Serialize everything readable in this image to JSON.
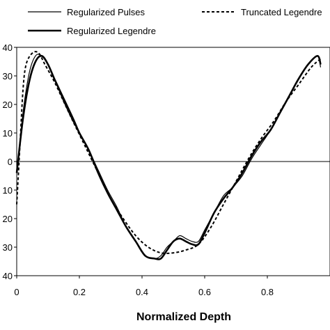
{
  "chart_data": {
    "type": "line",
    "xlabel": "Normalized Depth",
    "ylabel": "",
    "xlim": [
      0,
      1
    ],
    "ylim": [
      -40,
      40
    ],
    "x_ticks": [
      0,
      0.2,
      0.4,
      0.6,
      0.8
    ],
    "x_tick_labels": [
      "0",
      "0.2",
      "0.4",
      "0.6",
      "0.8"
    ],
    "y_ticks": [
      40,
      30,
      20,
      10,
      0,
      -10,
      -20,
      -30,
      -40
    ],
    "y_tick_labels": [
      "40",
      "30",
      "20",
      "10",
      "0",
      "10",
      "20",
      "30",
      "40"
    ],
    "grid": false,
    "zero_line": true,
    "legend_position": "top",
    "series": [
      {
        "name": "Regularized Pulses",
        "style": "thin",
        "x": [
          0,
          0.02,
          0.04,
          0.06,
          0.08,
          0.1,
          0.12,
          0.15,
          0.18,
          0.2,
          0.23,
          0.26,
          0.29,
          0.32,
          0.35,
          0.38,
          0.41,
          0.44,
          0.46,
          0.48,
          0.5,
          0.52,
          0.54,
          0.56,
          0.58,
          0.6,
          0.63,
          0.66,
          0.69,
          0.72,
          0.75,
          0.78,
          0.81,
          0.84,
          0.87,
          0.9,
          0.93,
          0.96,
          0.97
        ],
        "y": [
          -4,
          17,
          31,
          37,
          37,
          34,
          29,
          21,
          14,
          10,
          4,
          -3,
          -10,
          -16,
          -23,
          -28,
          -33,
          -34,
          -33,
          -30,
          -28,
          -26,
          -27,
          -28,
          -28,
          -24,
          -18,
          -12,
          -9,
          -5,
          1,
          6,
          11,
          17,
          23,
          29,
          34,
          37,
          33
        ]
      },
      {
        "name": "Regularized Legendre",
        "style": "thick",
        "x": [
          0,
          0.02,
          0.04,
          0.06,
          0.08,
          0.1,
          0.12,
          0.15,
          0.18,
          0.2,
          0.23,
          0.26,
          0.29,
          0.32,
          0.35,
          0.38,
          0.41,
          0.44,
          0.46,
          0.48,
          0.5,
          0.52,
          0.54,
          0.56,
          0.58,
          0.6,
          0.63,
          0.66,
          0.69,
          0.72,
          0.75,
          0.78,
          0.81,
          0.84,
          0.87,
          0.9,
          0.93,
          0.96,
          0.97
        ],
        "y": [
          -4,
          15,
          28,
          35,
          37,
          34,
          29,
          22,
          15,
          10,
          4,
          -4,
          -11,
          -17,
          -23,
          -28,
          -33,
          -34,
          -34,
          -31,
          -28,
          -27,
          -28,
          -29,
          -29,
          -25,
          -18,
          -13,
          -9,
          -4,
          2,
          7,
          11,
          17,
          23,
          29,
          34,
          37,
          34
        ]
      },
      {
        "name": "Truncated Legendre",
        "style": "dashed",
        "x": [
          0,
          0.01,
          0.02,
          0.03,
          0.05,
          0.07,
          0.09,
          0.12,
          0.15,
          0.18,
          0.22,
          0.26,
          0.3,
          0.34,
          0.38,
          0.42,
          0.46,
          0.5,
          0.54,
          0.58,
          0.62,
          0.66,
          0.7,
          0.74,
          0.78,
          0.82,
          0.86,
          0.9,
          0.94,
          0.97
        ],
        "y": [
          -15,
          5,
          25,
          34,
          38,
          38,
          34,
          28,
          21,
          14,
          5,
          -4,
          -13,
          -20,
          -26,
          -30,
          -32,
          -32,
          -31,
          -29,
          -23,
          -15,
          -7,
          1,
          8,
          14,
          21,
          27,
          33,
          36
        ]
      }
    ]
  }
}
